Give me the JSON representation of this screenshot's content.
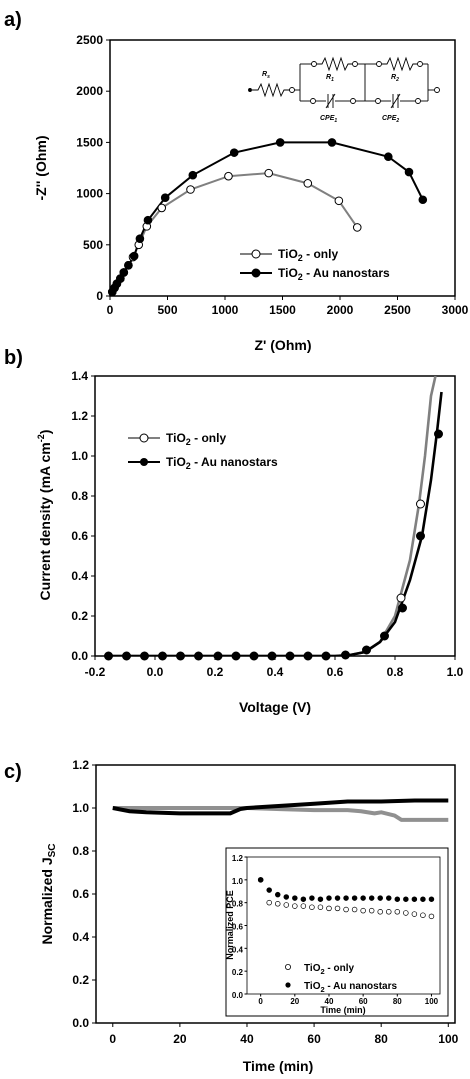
{
  "panels": [
    {
      "id": "a",
      "label": "a)",
      "chart_data": {
        "type": "scatter",
        "xlabel": "Z' (Ohm)",
        "ylabel": "-Z'' (Ohm)",
        "xlim": [
          0,
          3000
        ],
        "ylim": [
          0,
          2500
        ],
        "xticks": [
          0,
          500,
          1000,
          1500,
          2000,
          2500,
          3000
        ],
        "yticks": [
          0,
          500,
          1000,
          1500,
          2000,
          2500
        ],
        "legend_position": "bottom-right",
        "series": [
          {
            "name": "TiO2 - only",
            "marker": "open-circle",
            "line_color": "#808080",
            "x": [
              20,
              40,
              60,
              90,
              120,
              160,
              200,
              250,
              320,
              450,
              700,
              1030,
              1380,
              1720,
              1990,
              2150
            ],
            "y": [
              40,
              80,
              120,
              170,
              230,
              300,
              380,
              500,
              680,
              860,
              1040,
              1170,
              1200,
              1100,
              930,
              670
            ]
          },
          {
            "name": "TiO2 - Au nanostars",
            "marker": "filled-circle",
            "line_color": "#000000",
            "x": [
              20,
              40,
              60,
              90,
              120,
              160,
              210,
              260,
              330,
              480,
              720,
              1080,
              1480,
              1930,
              2420,
              2600,
              2720
            ],
            "y": [
              40,
              80,
              120,
              170,
              230,
              300,
              390,
              560,
              740,
              960,
              1180,
              1400,
              1500,
              1500,
              1360,
              1210,
              940
            ]
          }
        ],
        "inset_circuit_labels": [
          "R_s",
          "R_1",
          "R_2",
          "CPE_1",
          "CPE_2"
        ]
      }
    },
    {
      "id": "b",
      "label": "b)",
      "chart_data": {
        "type": "line",
        "xlabel": "Voltage (V)",
        "ylabel": "Current density (mA cm^-2)",
        "xlim": [
          -0.2,
          1.0
        ],
        "ylim": [
          0,
          1.4
        ],
        "xticks": [
          -0.2,
          0.0,
          0.2,
          0.4,
          0.6,
          0.8,
          1.0
        ],
        "yticks": [
          0.0,
          0.2,
          0.4,
          0.6,
          0.8,
          1.0,
          1.2,
          1.4
        ],
        "legend_position": "top-left",
        "series": [
          {
            "name": "TiO2 - only",
            "marker": "open-circle",
            "line_color": "#808080",
            "curve_x": [
              -0.16,
              0.6,
              0.65,
              0.7,
              0.75,
              0.8,
              0.85,
              0.88,
              0.9,
              0.92,
              0.935
            ],
            "curve_y": [
              0,
              0,
              0.005,
              0.02,
              0.07,
              0.2,
              0.48,
              0.76,
              1.0,
              1.3,
              1.4
            ],
            "marker_x": [
              0.82,
              0.885
            ],
            "marker_y": [
              0.29,
              0.76
            ]
          },
          {
            "name": "TiO2 - Au nanostars",
            "marker": "filled-circle",
            "line_color": "#000000",
            "curve_x": [
              -0.16,
              0.6,
              0.65,
              0.7,
              0.75,
              0.8,
              0.85,
              0.89,
              0.92,
              0.94,
              0.955
            ],
            "curve_y": [
              0,
              0,
              0.005,
              0.02,
              0.07,
              0.17,
              0.38,
              0.6,
              0.88,
              1.12,
              1.32
            ],
            "marker_x": [
              -0.155,
              -0.095,
              -0.035,
              0.025,
              0.085,
              0.145,
              0.21,
              0.27,
              0.33,
              0.39,
              0.45,
              0.51,
              0.57,
              0.635,
              0.705,
              0.765,
              0.825,
              0.885,
              0.945
            ],
            "marker_y": [
              0,
              0,
              0,
              0,
              0,
              0,
              0,
              0,
              0,
              0,
              0,
              0,
              0,
              0.005,
              0.03,
              0.1,
              0.24,
              0.6,
              1.11
            ]
          }
        ]
      }
    },
    {
      "id": "c",
      "label": "c)",
      "chart_data": {
        "type": "line",
        "xlabel": "Time (min)",
        "ylabel": "Normalized J_SC",
        "xlim": [
          -5,
          102
        ],
        "ylim": [
          0,
          1.2
        ],
        "xticks": [
          0,
          20,
          40,
          60,
          80,
          100
        ],
        "yticks": [
          0.0,
          0.2,
          0.4,
          0.6,
          0.8,
          1.0,
          1.2
        ],
        "series": [
          {
            "name": "TiO2 - only",
            "line_color": "#909090",
            "x": [
              0,
              10,
              20,
              30,
              36,
              40,
              50,
              60,
              70,
              74,
              78,
              80,
              84,
              86,
              90,
              100
            ],
            "y": [
              1.0,
              1.0,
              1.0,
              1.0,
              1.0,
              1.0,
              0.995,
              0.99,
              0.99,
              0.985,
              0.975,
              0.98,
              0.965,
              0.945,
              0.945,
              0.945
            ]
          },
          {
            "name": "TiO2 - Au nanostars",
            "line_color": "#000000",
            "x": [
              0,
              5,
              10,
              20,
              30,
              35,
              38,
              40,
              50,
              60,
              70,
              80,
              90,
              100
            ],
            "y": [
              1.0,
              0.985,
              0.98,
              0.975,
              0.975,
              0.975,
              0.995,
              1.0,
              1.01,
              1.02,
              1.03,
              1.03,
              1.035,
              1.035
            ]
          }
        ],
        "inset": {
          "xlabel": "Time (min)",
          "ylabel": "Normalized PCE",
          "xlim": [
            -8,
            105
          ],
          "ylim": [
            0,
            1.2
          ],
          "xticks": [
            0,
            20,
            40,
            60,
            80,
            100
          ],
          "yticks": [
            0.0,
            0.2,
            0.4,
            0.6,
            0.8,
            1.0,
            1.2
          ],
          "legend_position": "bottom",
          "series": [
            {
              "name": "TiO2 - only",
              "marker": "open-circle",
              "x": [
                0,
                5,
                10,
                15,
                20,
                25,
                30,
                35,
                40,
                45,
                50,
                55,
                60,
                65,
                70,
                75,
                80,
                85,
                90,
                95,
                100
              ],
              "y": [
                1.0,
                0.8,
                0.79,
                0.78,
                0.77,
                0.77,
                0.76,
                0.76,
                0.75,
                0.75,
                0.74,
                0.74,
                0.73,
                0.73,
                0.72,
                0.72,
                0.72,
                0.71,
                0.7,
                0.69,
                0.68
              ]
            },
            {
              "name": "TiO2 - Au nanostars",
              "marker": "filled-circle",
              "x": [
                0,
                5,
                10,
                15,
                20,
                25,
                30,
                35,
                40,
                45,
                50,
                55,
                60,
                65,
                70,
                75,
                80,
                85,
                90,
                95,
                100
              ],
              "y": [
                1.0,
                0.91,
                0.87,
                0.85,
                0.84,
                0.83,
                0.84,
                0.83,
                0.84,
                0.84,
                0.84,
                0.84,
                0.84,
                0.84,
                0.84,
                0.84,
                0.83,
                0.83,
                0.83,
                0.83,
                0.83
              ]
            }
          ]
        }
      }
    }
  ]
}
